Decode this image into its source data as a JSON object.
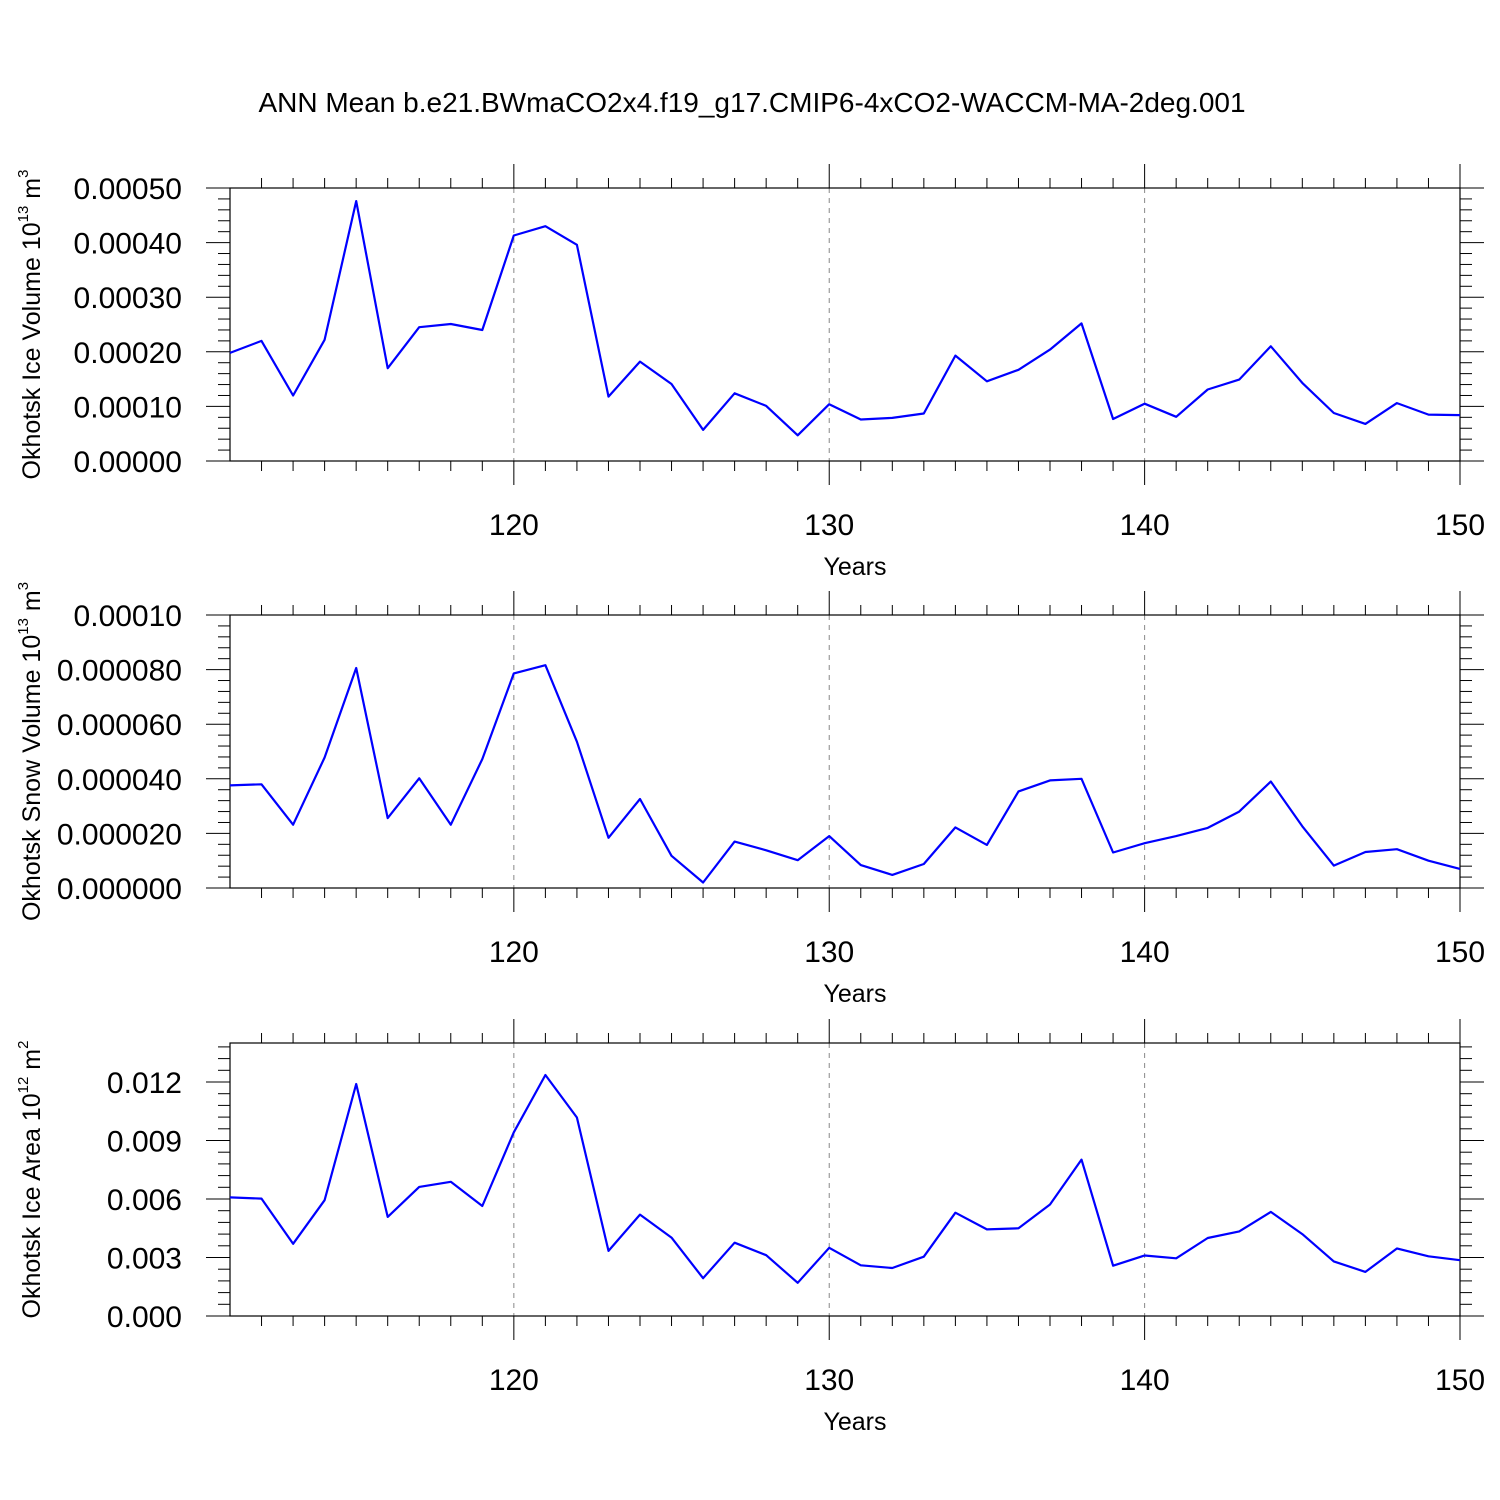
{
  "title": "ANN Mean b.e21.BWmaCO2x4.f19_g17.CMIP6-4xCO2-WACCM-MA-2deg.001",
  "colors": {
    "series": "#0000ff",
    "frame": "#000000",
    "grid": "#888888"
  },
  "chart_data": [
    {
      "type": "line",
      "ylabel": {
        "text": "Okhotsk Ice Volume 10",
        "sup1": "13",
        "mid": " m",
        "sup2": "3"
      },
      "xlabel": "Years",
      "xlim": [
        111,
        150
      ],
      "ylim": [
        0,
        0.0005
      ],
      "grid": "vertical dashed at major x ticks",
      "xticks": [
        120,
        130,
        140,
        150
      ],
      "xtick_labels": [
        "120",
        "130",
        "140",
        "150"
      ],
      "yticks": [
        0,
        0.0001,
        0.0002,
        0.0003,
        0.0004,
        0.0005
      ],
      "ytick_labels": [
        "0.00000",
        "0.00010",
        "0.00020",
        "0.00030",
        "0.00040",
        "0.00050"
      ],
      "x": [
        111,
        112,
        113,
        114,
        115,
        116,
        117,
        118,
        119,
        120,
        121,
        122,
        123,
        124,
        125,
        126,
        127,
        128,
        129,
        130,
        131,
        132,
        133,
        134,
        135,
        136,
        137,
        138,
        139,
        140,
        141,
        142,
        143,
        144,
        145,
        146,
        147,
        148,
        149,
        150
      ],
      "values": [
        0.000198,
        0.00022,
        0.00012,
        0.000222,
        0.000476,
        0.00017,
        0.000245,
        0.000251,
        0.00024,
        0.000413,
        0.00043,
        0.000396,
        0.000118,
        0.000182,
        0.000141,
        5.7e-05,
        0.000124,
        0.000101,
        4.7e-05,
        0.000104,
        7.6e-05,
        7.9e-05,
        8.7e-05,
        0.000193,
        0.000146,
        0.000167,
        0.000204,
        0.000252,
        7.7e-05,
        0.000105,
        8.1e-05,
        0.000131,
        0.000149,
        0.00021,
        0.000143,
        8.8e-05,
        6.8e-05,
        0.000106,
        8.5e-05,
        8.4e-05
      ]
    },
    {
      "type": "line",
      "ylabel": {
        "text": "Okhotsk Snow Volume 10",
        "sup1": "13",
        "mid": " m",
        "sup2": "3"
      },
      "xlabel": "Years",
      "xlim": [
        111,
        150
      ],
      "ylim": [
        0,
        0.0001
      ],
      "grid": "vertical dashed at major x ticks",
      "xticks": [
        120,
        130,
        140,
        150
      ],
      "xtick_labels": [
        "120",
        "130",
        "140",
        "150"
      ],
      "yticks": [
        0,
        2e-05,
        4e-05,
        6e-05,
        8e-05,
        0.0001
      ],
      "ytick_labels": [
        "0.000000",
        "0.000020",
        "0.000040",
        "0.000060",
        "0.000080",
        "0.00010"
      ],
      "x": [
        111,
        112,
        113,
        114,
        115,
        116,
        117,
        118,
        119,
        120,
        121,
        122,
        123,
        124,
        125,
        126,
        127,
        128,
        129,
        130,
        131,
        132,
        133,
        134,
        135,
        136,
        137,
        138,
        139,
        140,
        141,
        142,
        143,
        144,
        145,
        146,
        147,
        148,
        149,
        150
      ],
      "values": [
        3.76e-05,
        3.8e-05,
        2.32e-05,
        4.78e-05,
        8.06e-05,
        2.56e-05,
        4.02e-05,
        2.32e-05,
        4.72e-05,
        7.86e-05,
        8.16e-05,
        5.36e-05,
        1.84e-05,
        3.26e-05,
        1.18e-05,
        2e-06,
        1.7e-05,
        1.38e-05,
        1.02e-05,
        1.9e-05,
        8.4e-06,
        4.8e-06,
        8.8e-06,
        2.22e-05,
        1.58e-05,
        3.54e-05,
        3.94e-05,
        4e-05,
        1.3e-05,
        1.64e-05,
        1.9e-05,
        2.2e-05,
        2.8e-05,
        3.9e-05,
        2.26e-05,
        8.2e-06,
        1.32e-05,
        1.42e-05,
        1e-05,
        7e-06
      ]
    },
    {
      "type": "line",
      "ylabel": {
        "text": "Okhotsk Ice Area 10",
        "sup1": "12",
        "mid": " m",
        "sup2": "2"
      },
      "xlabel": "Years",
      "xlim": [
        111,
        150
      ],
      "ylim": [
        0,
        0.014
      ],
      "grid": "vertical dashed at major x ticks",
      "xticks": [
        120,
        130,
        140,
        150
      ],
      "xtick_labels": [
        "120",
        "130",
        "140",
        "150"
      ],
      "yticks": [
        0,
        0.003,
        0.006,
        0.009,
        0.012
      ],
      "ytick_labels": [
        "0.000",
        "0.003",
        "0.006",
        "0.009",
        "0.012"
      ],
      "x": [
        111,
        112,
        113,
        114,
        115,
        116,
        117,
        118,
        119,
        120,
        121,
        122,
        123,
        124,
        125,
        126,
        127,
        128,
        129,
        130,
        131,
        132,
        133,
        134,
        135,
        136,
        137,
        138,
        139,
        140,
        141,
        142,
        143,
        144,
        145,
        146,
        147,
        148,
        149,
        150
      ],
      "values": [
        0.00608,
        0.00602,
        0.0037,
        0.00594,
        0.0119,
        0.00508,
        0.00662,
        0.00688,
        0.00564,
        0.00942,
        0.01236,
        0.01018,
        0.00334,
        0.0052,
        0.00402,
        0.00194,
        0.00376,
        0.00312,
        0.0017,
        0.0035,
        0.0026,
        0.00246,
        0.00304,
        0.0053,
        0.00444,
        0.0045,
        0.00572,
        0.00802,
        0.00258,
        0.0031,
        0.00296,
        0.004,
        0.00434,
        0.00534,
        0.0042,
        0.0028,
        0.00226,
        0.00346,
        0.00306,
        0.00286
      ]
    }
  ]
}
